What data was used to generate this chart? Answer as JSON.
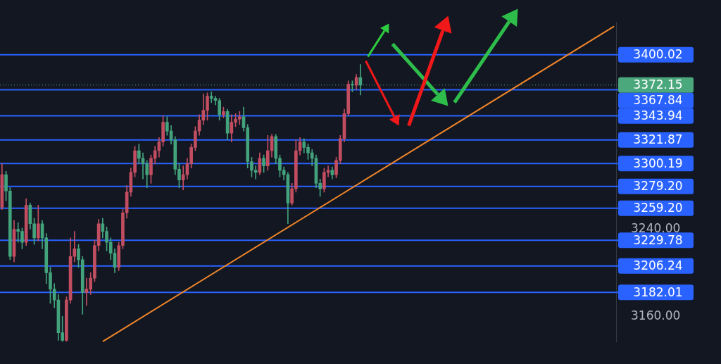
{
  "chart_data": {
    "type": "candlestick",
    "categories": [
      null,
      null,
      null,
      null,
      null,
      null,
      null,
      null,
      null,
      null,
      null,
      null,
      null,
      null,
      null,
      null,
      null,
      null,
      null,
      null,
      null,
      null,
      null,
      null,
      null,
      null,
      null,
      null,
      null,
      null,
      null,
      null,
      null,
      null,
      null,
      null,
      null,
      null,
      null,
      null,
      null,
      null,
      null,
      null,
      null,
      null,
      null,
      null,
      null,
      null,
      null,
      null,
      null,
      null,
      null,
      null,
      null,
      null,
      null,
      null,
      null,
      null,
      null,
      null,
      null,
      null,
      null,
      null,
      null,
      null,
      null,
      null,
      null,
      null,
      null,
      null,
      null,
      null,
      null,
      null,
      null,
      null,
      null,
      null,
      null,
      null,
      null,
      null,
      null,
      null,
      null,
      null,
      null,
      null,
      null,
      null,
      null,
      null,
      null,
      null,
      null,
      null,
      null,
      null,
      null,
      null,
      null,
      null,
      null,
      null,
      null,
      null,
      null,
      null,
      null,
      null,
      null,
      null,
      null,
      null,
      null,
      null,
      null,
      null,
      null,
      null,
      null,
      null,
      null,
      null,
      null,
      null,
      null,
      null,
      null,
      null,
      null,
      null,
      null,
      null,
      null,
      null,
      null,
      null,
      null,
      null,
      null,
      null,
      null,
      null,
      null,
      null,
      null
    ],
    "ohlc": [
      [
        3260,
        3300,
        3258,
        3290
      ],
      [
        3290,
        3293,
        3266,
        3275
      ],
      [
        3275,
        3278,
        3212,
        3215
      ],
      [
        3215,
        3248,
        3210,
        3240
      ],
      [
        3240,
        3246,
        3228,
        3238
      ],
      [
        3238,
        3241,
        3222,
        3228
      ],
      [
        3228,
        3268,
        3225,
        3262
      ],
      [
        3262,
        3264,
        3240,
        3245
      ],
      [
        3245,
        3250,
        3226,
        3232
      ],
      [
        3232,
        3262,
        3229,
        3245
      ],
      [
        3245,
        3248,
        3222,
        3232
      ],
      [
        3232,
        3236,
        3190,
        3200
      ],
      [
        3200,
        3205,
        3172,
        3185
      ],
      [
        3185,
        3190,
        3168,
        3175
      ],
      [
        3175,
        3180,
        3138,
        3145
      ],
      [
        3145,
        3160,
        3137,
        3138
      ],
      [
        3138,
        3178,
        3137,
        3175
      ],
      [
        3175,
        3232,
        3172,
        3215
      ],
      [
        3215,
        3238,
        3210,
        3222
      ],
      [
        3222,
        3226,
        3205,
        3212
      ],
      [
        3212,
        3215,
        3162,
        3182
      ],
      [
        3182,
        3195,
        3170,
        3185
      ],
      [
        3185,
        3200,
        3180,
        3195
      ],
      [
        3195,
        3230,
        3192,
        3225
      ],
      [
        3225,
        3249,
        3220,
        3245
      ],
      [
        3245,
        3250,
        3232,
        3238
      ],
      [
        3238,
        3242,
        3220,
        3228
      ],
      [
        3228,
        3232,
        3212,
        3218
      ],
      [
        3218,
        3222,
        3200,
        3205
      ],
      [
        3205,
        3228,
        3202,
        3225
      ],
      [
        3225,
        3258,
        3222,
        3255
      ],
      [
        3255,
        3280,
        3250,
        3274
      ],
      [
        3274,
        3296,
        3270,
        3292
      ],
      [
        3292,
        3316,
        3288,
        3312
      ],
      [
        3312,
        3318,
        3300,
        3305
      ],
      [
        3305,
        3310,
        3286,
        3300
      ],
      [
        3300,
        3303,
        3278,
        3290
      ],
      [
        3290,
        3308,
        3282,
        3305
      ],
      [
        3305,
        3316,
        3300,
        3312
      ],
      [
        3312,
        3324,
        3306,
        3320
      ],
      [
        3320,
        3344,
        3316,
        3338
      ],
      [
        3338,
        3343,
        3326,
        3330
      ],
      [
        3330,
        3335,
        3318,
        3322
      ],
      [
        3322,
        3325,
        3290,
        3295
      ],
      [
        3295,
        3300,
        3278,
        3285
      ],
      [
        3285,
        3298,
        3276,
        3290
      ],
      [
        3290,
        3305,
        3286,
        3300
      ],
      [
        3300,
        3318,
        3296,
        3315
      ],
      [
        3315,
        3334,
        3312,
        3330
      ],
      [
        3330,
        3345,
        3326,
        3340
      ],
      [
        3340,
        3364,
        3336,
        3349
      ],
      [
        3349,
        3365,
        3340,
        3362
      ],
      [
        3362,
        3366,
        3356,
        3360
      ],
      [
        3360,
        3362,
        3354,
        3358
      ],
      [
        3358,
        3360,
        3340,
        3345
      ],
      [
        3345,
        3352,
        3342,
        3348
      ],
      [
        3348,
        3350,
        3322,
        3328
      ],
      [
        3328,
        3345,
        3320,
        3338
      ],
      [
        3338,
        3346,
        3334,
        3341
      ],
      [
        3341,
        3348,
        3336,
        3343
      ],
      [
        3343,
        3352,
        3330,
        3333
      ],
      [
        3333,
        3336,
        3296,
        3302
      ],
      [
        3302,
        3306,
        3288,
        3294
      ],
      [
        3294,
        3298,
        3286,
        3292
      ],
      [
        3292,
        3310,
        3290,
        3305
      ],
      [
        3305,
        3308,
        3292,
        3298
      ],
      [
        3298,
        3326,
        3294,
        3312
      ],
      [
        3312,
        3327,
        3306,
        3325
      ],
      [
        3325,
        3327,
        3300,
        3305
      ],
      [
        3305,
        3308,
        3288,
        3294
      ],
      [
        3294,
        3297,
        3285,
        3290
      ],
      [
        3290,
        3292,
        3245,
        3264
      ],
      [
        3264,
        3282,
        3262,
        3277
      ],
      [
        3277,
        3322,
        3274,
        3312
      ],
      [
        3312,
        3324,
        3308,
        3320
      ],
      [
        3320,
        3323,
        3310,
        3315
      ],
      [
        3315,
        3318,
        3304,
        3310
      ],
      [
        3310,
        3313,
        3298,
        3305
      ],
      [
        3305,
        3308,
        3278,
        3282
      ],
      [
        3282,
        3286,
        3270,
        3277
      ],
      [
        3277,
        3296,
        3274,
        3292
      ],
      [
        3292,
        3298,
        3288,
        3294
      ],
      [
        3294,
        3297,
        3286,
        3290
      ],
      [
        3290,
        3306,
        3287,
        3303
      ],
      [
        3303,
        3326,
        3300,
        3323
      ],
      [
        3323,
        3350,
        3320,
        3346
      ],
      [
        3346,
        3376,
        3344,
        3373
      ],
      [
        3373,
        3376,
        3366,
        3372
      ],
      [
        3372,
        3382,
        3368,
        3379
      ],
      [
        3379,
        3391,
        3363,
        3372.15
      ],
      null,
      null,
      null,
      null,
      null,
      null,
      null,
      null,
      null,
      null,
      null,
      null,
      null,
      null,
      null,
      null,
      null,
      null,
      null,
      null,
      null,
      null,
      null,
      null,
      null,
      null,
      null,
      null,
      null,
      null,
      null,
      null,
      null,
      null,
      null,
      null,
      null,
      null,
      null,
      null,
      null,
      null,
      null,
      null,
      null,
      null,
      null,
      null,
      null,
      null,
      null,
      null,
      null,
      null,
      null,
      null,
      null,
      null,
      null,
      null,
      null,
      null,
      null
    ],
    "series": [
      {
        "type": "line",
        "values": [
          null,
          null,
          null,
          null,
          null,
          null,
          null,
          null,
          null,
          null,
          null,
          null,
          null,
          null,
          null,
          null,
          null,
          null,
          null,
          null,
          null,
          null,
          null,
          null,
          null,
          3137,
          null,
          null,
          null,
          null,
          null,
          null,
          null,
          null,
          null,
          null,
          null,
          null,
          null,
          null,
          null,
          null,
          null,
          null,
          null,
          null,
          null,
          null,
          null,
          null,
          null,
          null,
          null,
          null,
          null,
          null,
          null,
          null,
          null,
          null,
          null,
          null,
          null,
          null,
          null,
          null,
          null,
          null,
          null,
          null,
          null,
          null,
          null,
          null,
          null,
          null,
          null,
          null,
          null,
          null,
          null,
          null,
          null,
          null,
          null,
          null,
          null,
          null,
          null,
          null,
          null,
          null,
          null,
          null,
          null,
          null,
          null,
          null,
          null,
          null,
          null,
          null,
          null,
          null,
          null,
          null,
          null,
          null,
          null,
          null,
          null,
          null,
          null,
          null,
          null,
          null,
          null,
          null,
          null,
          null,
          null,
          null,
          null,
          null,
          null,
          null,
          null,
          null,
          null,
          null,
          null,
          null,
          null,
          null,
          null,
          null,
          null,
          null,
          null,
          null,
          null,
          null,
          null,
          null,
          null,
          null,
          null,
          null,
          null,
          null,
          null,
          null,
          3426
        ],
        "color": "#f0862a"
      }
    ],
    "ylim": [
      3136.5,
      3430
    ],
    "yticks": [
      {
        "value": 3160,
        "label": "3160.00"
      },
      {
        "value": 3240,
        "label": "3240.00"
      }
    ],
    "tick_labels": "y",
    "ref_lines": [
      {
        "axis": "y",
        "value": 3400.02,
        "label": "3400.02",
        "color": "#2962ff"
      },
      {
        "axis": "y",
        "value": 3372.15,
        "label": "3372.15",
        "color": "#4ba77c",
        "line_style": "dotted"
      },
      {
        "axis": "y",
        "value": 3367.84,
        "label": "3367.84",
        "color": "#2962ff"
      },
      {
        "axis": "y",
        "value": 3343.94,
        "label": "3343.94",
        "color": "#2962ff"
      },
      {
        "axis": "y",
        "value": 3321.87,
        "label": "3321.87",
        "color": "#2962ff"
      },
      {
        "axis": "y",
        "value": 3300.19,
        "label": "3300.19",
        "color": "#2962ff"
      },
      {
        "axis": "y",
        "value": 3279.2,
        "label": "3279.20",
        "color": "#2962ff"
      },
      {
        "axis": "y",
        "value": 3259.2,
        "label": "3259.20",
        "color": "#2962ff"
      },
      {
        "axis": "y",
        "value": 3229.78,
        "label": "3229.78",
        "color": "#2962ff"
      },
      {
        "axis": "y",
        "value": 3206.24,
        "label": "3206.24",
        "color": "#2962ff"
      },
      {
        "axis": "y",
        "value": 3182.01,
        "label": "3182.01",
        "color": "#2962ff"
      }
    ]
  }
}
